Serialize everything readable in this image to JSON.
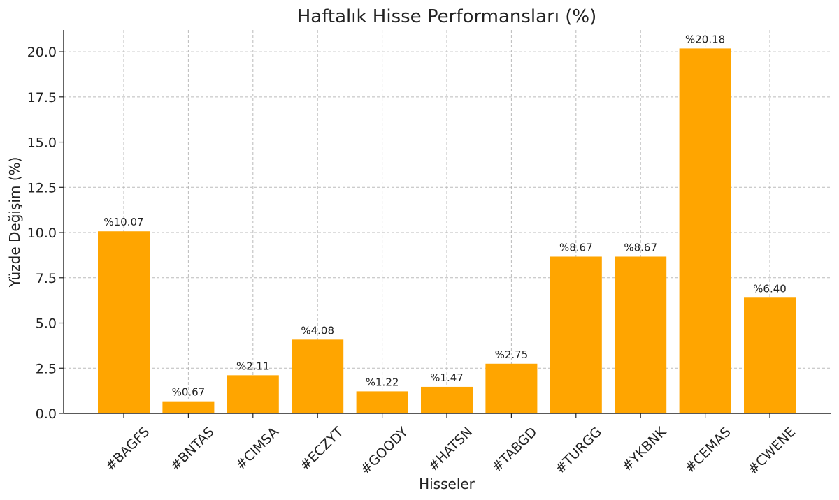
{
  "chart_data": {
    "type": "bar",
    "title": "Haftalık Hisse Performansları (%)",
    "xlabel": "Hisseler",
    "ylabel": "Yüzde Değişim (%)",
    "categories": [
      "#BAGFS",
      "#BNTAS",
      "#CIMSA",
      "#ECZYT",
      "#GOODY",
      "#HATSN",
      "#TABGD",
      "#TURGG",
      "#YKBNK",
      "#CEMAS",
      "#CWENE"
    ],
    "values": [
      10.07,
      0.67,
      2.11,
      4.08,
      1.22,
      1.47,
      2.75,
      8.67,
      8.67,
      20.18,
      6.4
    ],
    "data_labels": [
      "%10.07",
      "%0.67",
      "%2.11",
      "%4.08",
      "%1.22",
      "%1.47",
      "%2.75",
      "%8.67",
      "%8.67",
      "%20.18",
      "%6.40"
    ],
    "ylim": [
      0,
      21.2
    ],
    "yticks": [
      0,
      2.5,
      5,
      7.5,
      10,
      12.5,
      15,
      17.5,
      20
    ],
    "ytick_labels": [
      "0.0",
      "2.5",
      "5.0",
      "7.5",
      "10.0",
      "12.5",
      "15.0",
      "17.5",
      "20.0"
    ],
    "grid": true,
    "bar_color": "#FFA500"
  }
}
